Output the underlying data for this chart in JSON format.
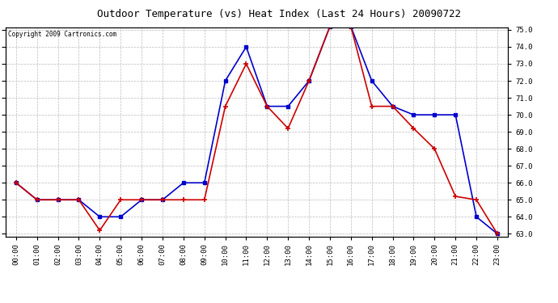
{
  "title": "Outdoor Temperature (vs) Heat Index (Last 24 Hours) 20090722",
  "copyright": "Copyright 2009 Cartronics.com",
  "hours": [
    "00:00",
    "01:00",
    "02:00",
    "03:00",
    "04:00",
    "05:00",
    "06:00",
    "07:00",
    "08:00",
    "09:00",
    "10:00",
    "11:00",
    "12:00",
    "13:00",
    "14:00",
    "15:00",
    "16:00",
    "17:00",
    "18:00",
    "19:00",
    "20:00",
    "21:00",
    "22:00",
    "23:00"
  ],
  "temp": [
    66,
    65,
    65,
    65,
    64,
    64,
    65,
    65,
    66,
    66,
    72,
    74,
    70.5,
    70.5,
    72,
    75.2,
    75.2,
    72,
    70.5,
    70,
    70,
    70,
    64,
    63
  ],
  "heat_index": [
    66,
    65,
    65,
    65,
    63.2,
    65,
    65,
    65,
    65,
    65,
    70.5,
    73,
    70.5,
    69.2,
    72,
    75.2,
    75.2,
    70.5,
    70.5,
    69.2,
    68,
    65.2,
    65,
    63
  ],
  "temp_color": "#0000cc",
  "heat_color": "#cc0000",
  "bg_color": "#ffffff",
  "grid_color": "#bbbbbb",
  "ylim_min": 63.0,
  "ylim_max": 75.0,
  "ytick_step": 1.0
}
